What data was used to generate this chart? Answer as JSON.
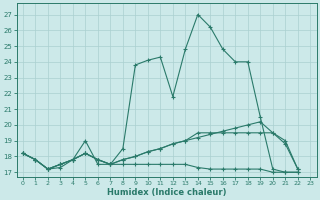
{
  "xlabel": "Humidex (Indice chaleur)",
  "xlim": [
    -0.5,
    23.5
  ],
  "ylim": [
    16.7,
    27.7
  ],
  "xticks": [
    0,
    1,
    2,
    3,
    4,
    5,
    6,
    7,
    8,
    9,
    10,
    11,
    12,
    13,
    14,
    15,
    16,
    17,
    18,
    19,
    20,
    21,
    22,
    23
  ],
  "yticks": [
    17,
    18,
    19,
    20,
    21,
    22,
    23,
    24,
    25,
    26,
    27
  ],
  "background_color": "#cce9e9",
  "grid_color": "#aad0d0",
  "line_color": "#2a7a6a",
  "x_values": [
    0,
    1,
    2,
    3,
    4,
    5,
    6,
    7,
    8,
    9,
    10,
    11,
    12,
    13,
    14,
    15,
    16,
    17,
    18,
    19,
    20,
    21,
    22
  ],
  "line1": [
    18.2,
    17.8,
    17.2,
    17.3,
    17.8,
    19.0,
    17.5,
    17.5,
    18.5,
    23.8,
    24.1,
    24.3,
    21.8,
    24.8,
    27.0,
    26.2,
    24.8,
    24.0,
    24.0,
    20.5,
    17.2,
    17.0,
    17.0
  ],
  "line2": [
    18.2,
    17.8,
    17.2,
    17.5,
    17.8,
    18.2,
    17.8,
    17.5,
    17.8,
    18.0,
    18.3,
    18.5,
    18.8,
    19.0,
    19.2,
    19.4,
    19.6,
    19.8,
    20.0,
    20.2,
    19.5,
    19.0,
    17.2
  ],
  "line3": [
    18.2,
    17.8,
    17.2,
    17.5,
    17.8,
    18.2,
    17.8,
    17.5,
    17.5,
    17.5,
    17.5,
    17.5,
    17.5,
    17.5,
    17.3,
    17.2,
    17.2,
    17.2,
    17.2,
    17.2,
    17.0,
    17.0,
    17.0
  ],
  "line4": [
    18.2,
    17.8,
    17.2,
    17.5,
    17.8,
    18.2,
    17.8,
    17.5,
    17.8,
    18.0,
    18.3,
    18.5,
    18.8,
    19.0,
    19.5,
    19.5,
    19.5,
    19.5,
    19.5,
    19.5,
    19.5,
    18.8,
    17.2
  ]
}
